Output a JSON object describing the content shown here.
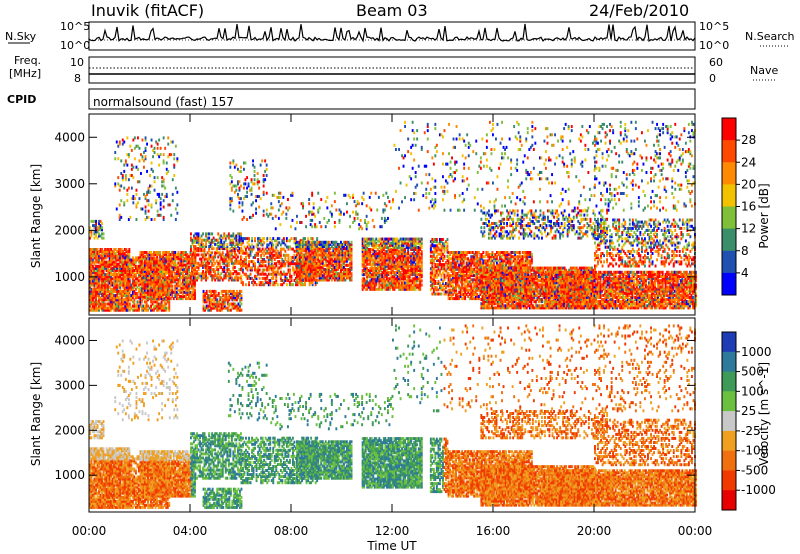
{
  "header": {
    "station": "Inuvik (fitACF)",
    "beam": "Beam 03",
    "date": "24/Feb/2010"
  },
  "side_labels": {
    "nsky": "N.Sky",
    "nsearch": "N.Search",
    "freq_line1": "Freq.",
    "freq_line2": "[MHz]",
    "nave": "Nave",
    "cpid": "CPID"
  },
  "strip_ticks": {
    "nsky_left": [
      "10^5",
      "10^0"
    ],
    "nsky_right": [
      "10^5",
      "10^0"
    ],
    "freq_left": [
      "10",
      "8"
    ],
    "nave_right": [
      "60",
      "0"
    ]
  },
  "program": "normalsound (fast) 157",
  "x_axis": {
    "label": "Time UT",
    "ticks": [
      "00:00",
      "04:00",
      "08:00",
      "12:00",
      "16:00",
      "20:00",
      "00:00"
    ]
  },
  "chart_data": [
    {
      "type": "heatmap",
      "name": "power",
      "ylabel": "Slant Range [km]",
      "yticks": [
        1000,
        2000,
        3000,
        4000
      ],
      "ylim": [
        180,
        4500
      ],
      "xlim_hours": [
        0,
        24
      ],
      "colorbar": {
        "label": "Power [dB]",
        "ticks": [
          "28",
          "24",
          "20",
          "16",
          "12",
          "8",
          "4"
        ],
        "colors": [
          "#ff0000",
          "#ff4800",
          "#ff8a00",
          "#f2c100",
          "#7fbf3a",
          "#3a8f6a",
          "#2050b0",
          "#0000ff"
        ]
      }
    },
    {
      "type": "heatmap",
      "name": "velocity",
      "ylabel": "Slant Range [km]",
      "yticks": [
        1000,
        2000,
        3000,
        4000
      ],
      "ylim": [
        180,
        4500
      ],
      "xlim_hours": [
        0,
        24
      ],
      "colorbar": {
        "label": "Velocity [m s^-1]",
        "ticks": [
          "1000",
          "500",
          "100",
          "25",
          "-25",
          "-100",
          "-500",
          "-1000"
        ],
        "colors": [
          "#1e3cb4",
          "#2e7a9a",
          "#3e9a58",
          "#6cc040",
          "#c8c8c8",
          "#f0a020",
          "#f07010",
          "#f03a00",
          "#e60000"
        ]
      }
    }
  ]
}
